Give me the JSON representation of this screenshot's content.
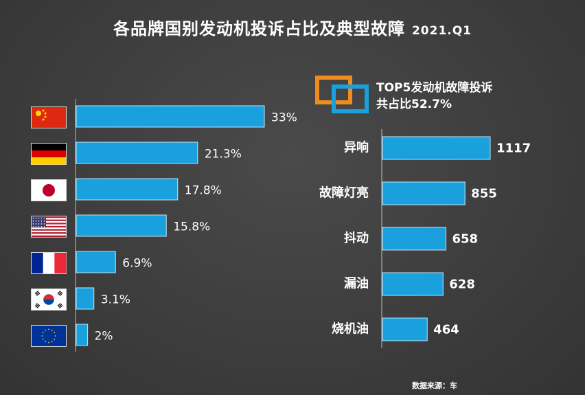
{
  "title": "各品牌国别发动机投诉占比及典型故障",
  "period": "2021.Q1",
  "source_note": "数据来源：车",
  "colors": {
    "bar": "#1aa0dd",
    "orange": "#ef8c21",
    "blue": "#1aa0dd"
  },
  "chart_data": [
    {
      "type": "bar",
      "orientation": "horizontal",
      "categories": [
        "China",
        "Germany",
        "Japan",
        "USA",
        "France",
        "South Korea",
        "EU"
      ],
      "flag_icons": [
        "china-flag-icon",
        "germany-flag-icon",
        "japan-flag-icon",
        "usa-flag-icon",
        "france-flag-icon",
        "korea-flag-icon",
        "eu-flag-icon"
      ],
      "values": [
        33,
        21.3,
        17.8,
        15.8,
        6.9,
        3.1,
        2
      ],
      "value_labels": [
        "33%",
        "21.3%",
        "17.8%",
        "15.8%",
        "6.9%",
        "3.1%",
        "2%"
      ],
      "xlim": [
        0,
        33
      ],
      "grid": false
    },
    {
      "type": "bar",
      "orientation": "horizontal",
      "subtitle_line1": "TOP5发动机故障投诉",
      "subtitle_line2": "共占比52.7%",
      "categories": [
        "异响",
        "故障灯亮",
        "抖动",
        "漏油",
        "烧机油"
      ],
      "values": [
        1117,
        855,
        658,
        628,
        464
      ],
      "value_labels": [
        "1117",
        "855",
        "658",
        "628",
        "464"
      ],
      "xlim": [
        0,
        1117
      ],
      "grid": false
    }
  ]
}
